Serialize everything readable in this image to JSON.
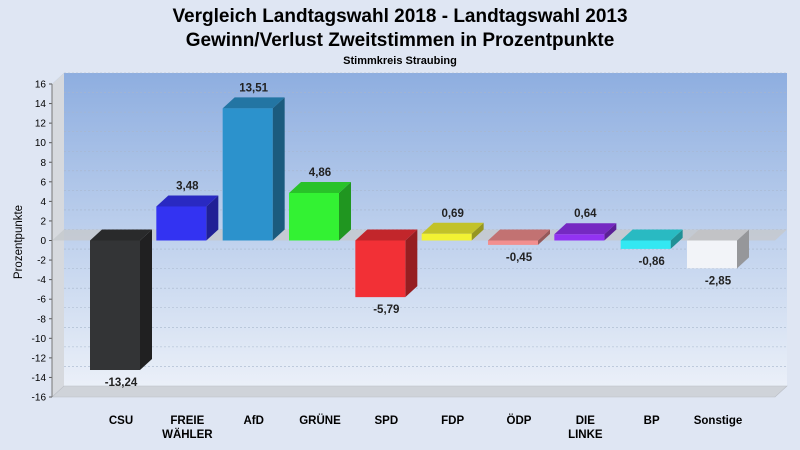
{
  "chart_data": {
    "type": "bar",
    "title": "Vergleich Landtagswahl 2018 - Landtagswahl 2013",
    "title2": "Gewinn/Verlust Zweitstimmen in Prozentpunkte",
    "subtitle": "Stimmkreis Straubing",
    "ylabel": "Prozentpunkte",
    "ylim": [
      -16,
      16
    ],
    "yticks": [
      16,
      14,
      12,
      10,
      8,
      6,
      4,
      2,
      0,
      -2,
      -4,
      -6,
      -8,
      -10,
      -12,
      -14,
      -16
    ],
    "grid": true,
    "categories": [
      [
        "CSU"
      ],
      [
        "FREIE",
        "WÄHLER"
      ],
      [
        "AfD"
      ],
      [
        "GRÜNE"
      ],
      [
        "SPD"
      ],
      [
        "FDP"
      ],
      [
        "ÖDP"
      ],
      [
        "DIE",
        "LINKE"
      ],
      [
        "BP"
      ],
      [
        "Sonstige"
      ]
    ],
    "values": [
      -13.24,
      3.48,
      13.51,
      4.86,
      -5.79,
      0.69,
      -0.45,
      0.64,
      -0.86,
      -2.85
    ],
    "value_labels": [
      "-13,24",
      "3,48",
      "13,51",
      "4,86",
      "-5,79",
      "0,69",
      "-0,45",
      "0,64",
      "-0,86",
      "-2,85"
    ],
    "colors": [
      "#333436",
      "#3333f2",
      "#2c92cc",
      "#33f233",
      "#f23036",
      "#f2f233",
      "#f28f8f",
      "#9233f2",
      "#33e8f2",
      "#f2f4f8"
    ]
  }
}
